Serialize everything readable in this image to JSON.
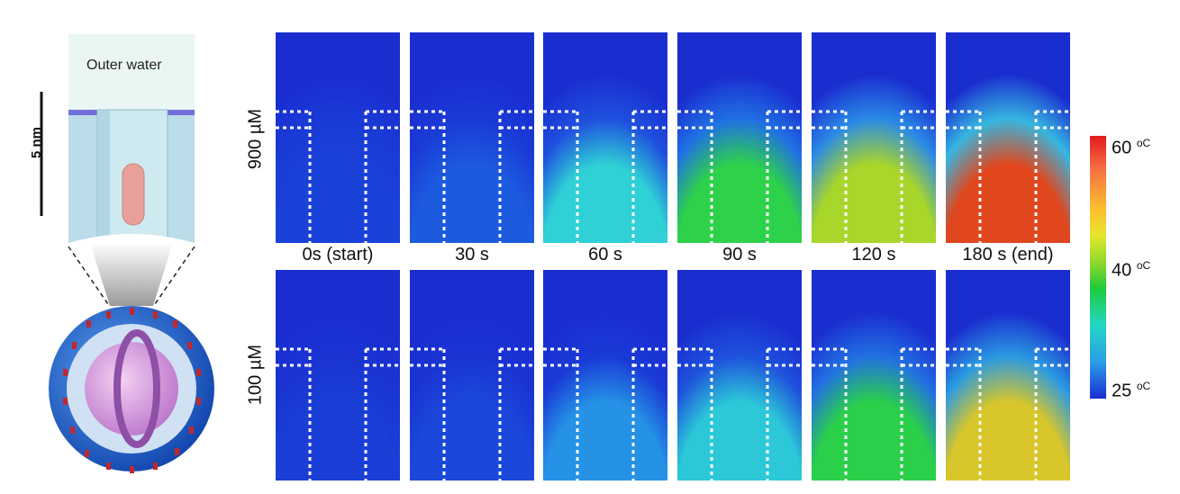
{
  "schematic": {
    "scale_bar_label": "5 nm",
    "outer_water_label": "Outer water"
  },
  "rows": [
    {
      "label": "900 µM"
    },
    {
      "label": "100 µM"
    }
  ],
  "time_labels": [
    "0s (start)",
    "30 s",
    "60 s",
    "90 s",
    "120 s",
    "180 s (end)"
  ],
  "colorbar": {
    "labels": [
      {
        "value": "60",
        "unit": "oC"
      },
      {
        "value": "40",
        "unit": "oC"
      },
      {
        "value": "25",
        "unit": "oC"
      }
    ],
    "colors": {
      "hot": "#e31a1c",
      "mid": "#1ecb3a",
      "cold": "#1a2ed0"
    }
  },
  "heatmap_levels": {
    "row_900": [
      {
        "top": "#1a3ad6",
        "body": "#1a42d8"
      },
      {
        "top": "#1a3ad6",
        "body": "#1c5ade"
      },
      {
        "top": "#1f50de",
        "body": "#2fd0d6"
      },
      {
        "top": "#2070e4",
        "body": "#2ed24a"
      },
      {
        "top": "#2a8ae6",
        "body": "#a9d62a"
      },
      {
        "top": "#36b6e0",
        "body": "#e0471e"
      }
    ],
    "row_100": [
      {
        "top": "#1a34d2",
        "body": "#1a3ed6"
      },
      {
        "top": "#1a34d2",
        "body": "#1b48da"
      },
      {
        "top": "#1a3ad6",
        "body": "#2592e6"
      },
      {
        "top": "#1e52dc",
        "body": "#2cc8d8"
      },
      {
        "top": "#2270e2",
        "body": "#2ad04a"
      },
      {
        "top": "#2a9ae2",
        "body": "#d9c62a"
      }
    ]
  }
}
